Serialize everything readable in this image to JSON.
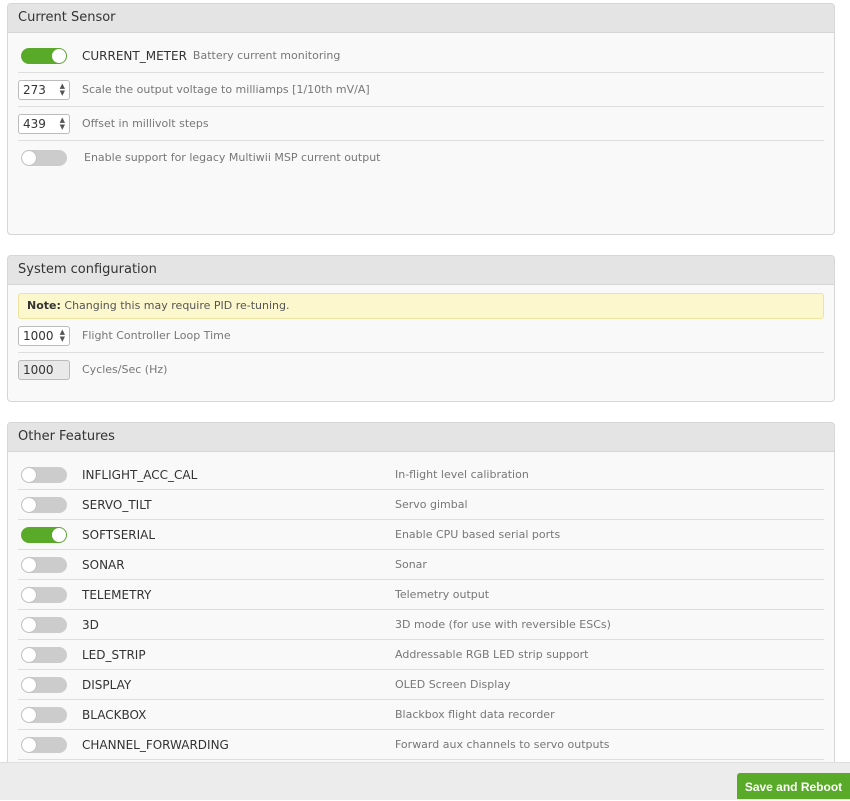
{
  "current_sensor": {
    "title": "Current Sensor",
    "meter": {
      "name": "CURRENT_METER",
      "desc": "Battery current monitoring",
      "enabled": true
    },
    "scale": {
      "value": "273",
      "label": "Scale the output voltage to milliamps [1/10th mV/A]"
    },
    "offset": {
      "value": "439",
      "label": "Offset in millivolt steps"
    },
    "legacy": {
      "label": "Enable support for legacy Multiwii MSP current output",
      "enabled": false
    }
  },
  "system": {
    "title": "System configuration",
    "note_bold": "Note:",
    "note": " Changing this may require PID re-tuning.",
    "loop": {
      "value": "1000",
      "label": "Flight Controller Loop Time"
    },
    "cycles": {
      "value": "1000",
      "label": "Cycles/Sec (Hz)"
    }
  },
  "features": {
    "title": "Other Features",
    "items": [
      {
        "name": "INFLIGHT_ACC_CAL",
        "desc": "In-flight level calibration",
        "enabled": false
      },
      {
        "name": "SERVO_TILT",
        "desc": "Servo gimbal",
        "enabled": false
      },
      {
        "name": "SOFTSERIAL",
        "desc": "Enable CPU based serial ports",
        "enabled": true
      },
      {
        "name": "SONAR",
        "desc": "Sonar",
        "enabled": false
      },
      {
        "name": "TELEMETRY",
        "desc": "Telemetry output",
        "enabled": false
      },
      {
        "name": "3D",
        "desc": "3D mode (for use with reversible ESCs)",
        "enabled": false
      },
      {
        "name": "LED_STRIP",
        "desc": "Addressable RGB LED strip support",
        "enabled": false
      },
      {
        "name": "DISPLAY",
        "desc": "OLED Screen Display",
        "enabled": false
      },
      {
        "name": "BLACKBOX",
        "desc": "Blackbox flight data recorder",
        "enabled": false
      },
      {
        "name": "CHANNEL_FORWARDING",
        "desc": "Forward aux channels to servo outputs",
        "enabled": false
      }
    ]
  },
  "footer": {
    "save_label": "Save and Reboot"
  },
  "colors": {
    "accent": "#59aa29",
    "note_bg": "#fdf7cd"
  }
}
